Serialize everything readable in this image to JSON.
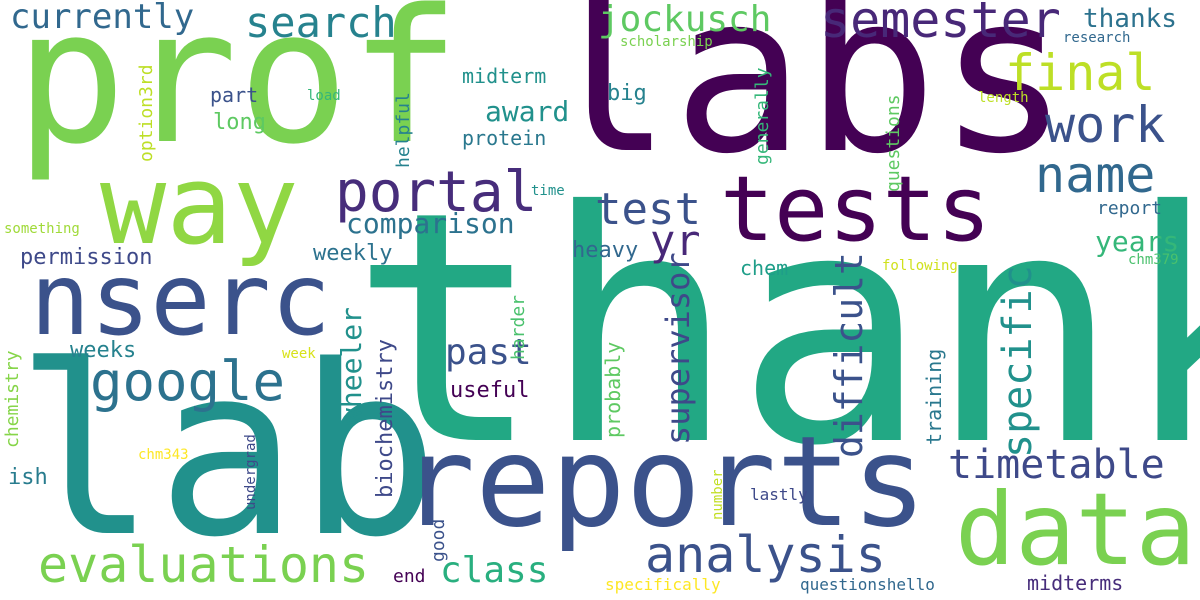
{
  "words": [
    {
      "text": "thank",
      "color": "#22a884"
    },
    {
      "text": "labs",
      "color": "#440154"
    },
    {
      "text": "prof",
      "color": "#7ad151"
    },
    {
      "text": "lab",
      "color": "#21918c"
    },
    {
      "text": "reports",
      "color": "#3b528b"
    },
    {
      "text": "way",
      "color": "#90d743"
    },
    {
      "text": "tests",
      "color": "#440154"
    },
    {
      "text": "nserc",
      "color": "#3b528b"
    },
    {
      "text": "data",
      "color": "#7ad151"
    },
    {
      "text": "evaluations",
      "color": "#7ad151"
    },
    {
      "text": "analysis",
      "color": "#3b528b"
    },
    {
      "text": "portal",
      "color": "#472d7b"
    },
    {
      "text": "google",
      "color": "#2c728e"
    },
    {
      "text": "semester",
      "color": "#482878"
    },
    {
      "text": "name",
      "color": "#31688e"
    },
    {
      "text": "work",
      "color": "#3b528b"
    },
    {
      "text": "timetable",
      "color": "#3e4989"
    },
    {
      "text": "final",
      "color": "#bddf26"
    },
    {
      "text": "search",
      "color": "#26828e"
    },
    {
      "text": "currently",
      "color": "#31688e"
    },
    {
      "text": "jockusch",
      "color": "#5ec962"
    },
    {
      "text": "test",
      "color": "#3b528b"
    },
    {
      "text": "yr",
      "color": "#482878"
    },
    {
      "text": "past",
      "color": "#3b528b"
    },
    {
      "text": "class",
      "color": "#29af7f"
    },
    {
      "text": "comparison",
      "color": "#2c728e"
    },
    {
      "text": "award",
      "color": "#21918c"
    },
    {
      "text": "years",
      "color": "#35b779"
    },
    {
      "text": "thanks",
      "color": "#2c728e"
    },
    {
      "text": "specific",
      "color": "#21918c"
    },
    {
      "text": "difficult",
      "color": "#3b528b"
    },
    {
      "text": "supervisor",
      "color": "#3e4989"
    },
    {
      "text": "wheeler",
      "color": "#21918c"
    },
    {
      "text": "biochemistry",
      "color": "#3e4989"
    },
    {
      "text": "permission",
      "color": "#3e4989"
    },
    {
      "text": "weekly",
      "color": "#2c728e"
    },
    {
      "text": "weeks",
      "color": "#26828e"
    },
    {
      "text": "useful",
      "color": "#440154"
    },
    {
      "text": "heavy",
      "color": "#31688e"
    },
    {
      "text": "chem",
      "color": "#1f9e89"
    },
    {
      "text": "midterms",
      "color": "#472d7b"
    },
    {
      "text": "end",
      "color": "#440154"
    },
    {
      "text": "part",
      "color": "#3b528b"
    },
    {
      "text": "long",
      "color": "#5ec962"
    },
    {
      "text": "midterm",
      "color": "#21918c"
    },
    {
      "text": "protein",
      "color": "#2a788e"
    },
    {
      "text": "big",
      "color": "#26828e"
    },
    {
      "text": "report",
      "color": "#31688e"
    },
    {
      "text": "research",
      "color": "#31688e"
    },
    {
      "text": "scholarship",
      "color": "#7ad151"
    },
    {
      "text": "load",
      "color": "#35b779"
    },
    {
      "text": "time",
      "color": "#21918c"
    },
    {
      "text": "something",
      "color": "#a0da39"
    },
    {
      "text": "following",
      "color": "#d0e11c"
    },
    {
      "text": "length",
      "color": "#bddf26"
    },
    {
      "text": "chm379",
      "color": "#4ac16d"
    },
    {
      "text": "week",
      "color": "#d8e219"
    },
    {
      "text": "chm343",
      "color": "#fde725"
    },
    {
      "text": "ish",
      "color": "#287c8e"
    },
    {
      "text": "lastly",
      "color": "#3e4989"
    },
    {
      "text": "specifically",
      "color": "#fde725"
    },
    {
      "text": "questionshello",
      "color": "#31688e"
    },
    {
      "text": "option3rd",
      "color": "#bddf26"
    },
    {
      "text": "helpful",
      "color": "#26828e"
    },
    {
      "text": "generally",
      "color": "#35b779"
    },
    {
      "text": "questions",
      "color": "#5ec962"
    },
    {
      "text": "harder",
      "color": "#4ac16d"
    },
    {
      "text": "chemistry",
      "color": "#86d549"
    },
    {
      "text": "undergrad",
      "color": "#3e4989"
    },
    {
      "text": "probably",
      "color": "#5ec962"
    },
    {
      "text": "good",
      "color": "#3b528b"
    },
    {
      "text": "number",
      "color": "#c2df23"
    },
    {
      "text": "training",
      "color": "#2a788e"
    }
  ]
}
